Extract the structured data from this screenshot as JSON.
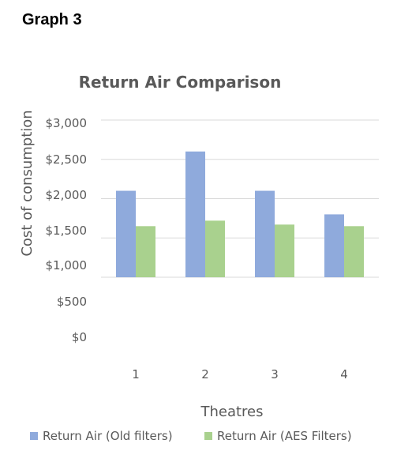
{
  "heading": "Graph 3",
  "chart_data": {
    "type": "bar",
    "title": "Return Air Comparison",
    "xlabel": "Theatres",
    "ylabel": "Cost of consumption",
    "categories": [
      "1",
      "2",
      "3",
      "4"
    ],
    "y_ticks": [
      "$0",
      "$500",
      "$1,000",
      "$1,500",
      "$2,000",
      "$2,500",
      "$3,000"
    ],
    "ylim": [
      0,
      3000
    ],
    "grid": true,
    "legend_position": "bottom",
    "series": [
      {
        "name": "Return Air (Old filters)",
        "color": "#8faadc",
        "values": [
          2100,
          2600,
          2100,
          1800
        ]
      },
      {
        "name": "Return Air (AES Filters)",
        "color": "#a9d18e",
        "values": [
          1650,
          1720,
          1670,
          1650
        ]
      }
    ]
  }
}
